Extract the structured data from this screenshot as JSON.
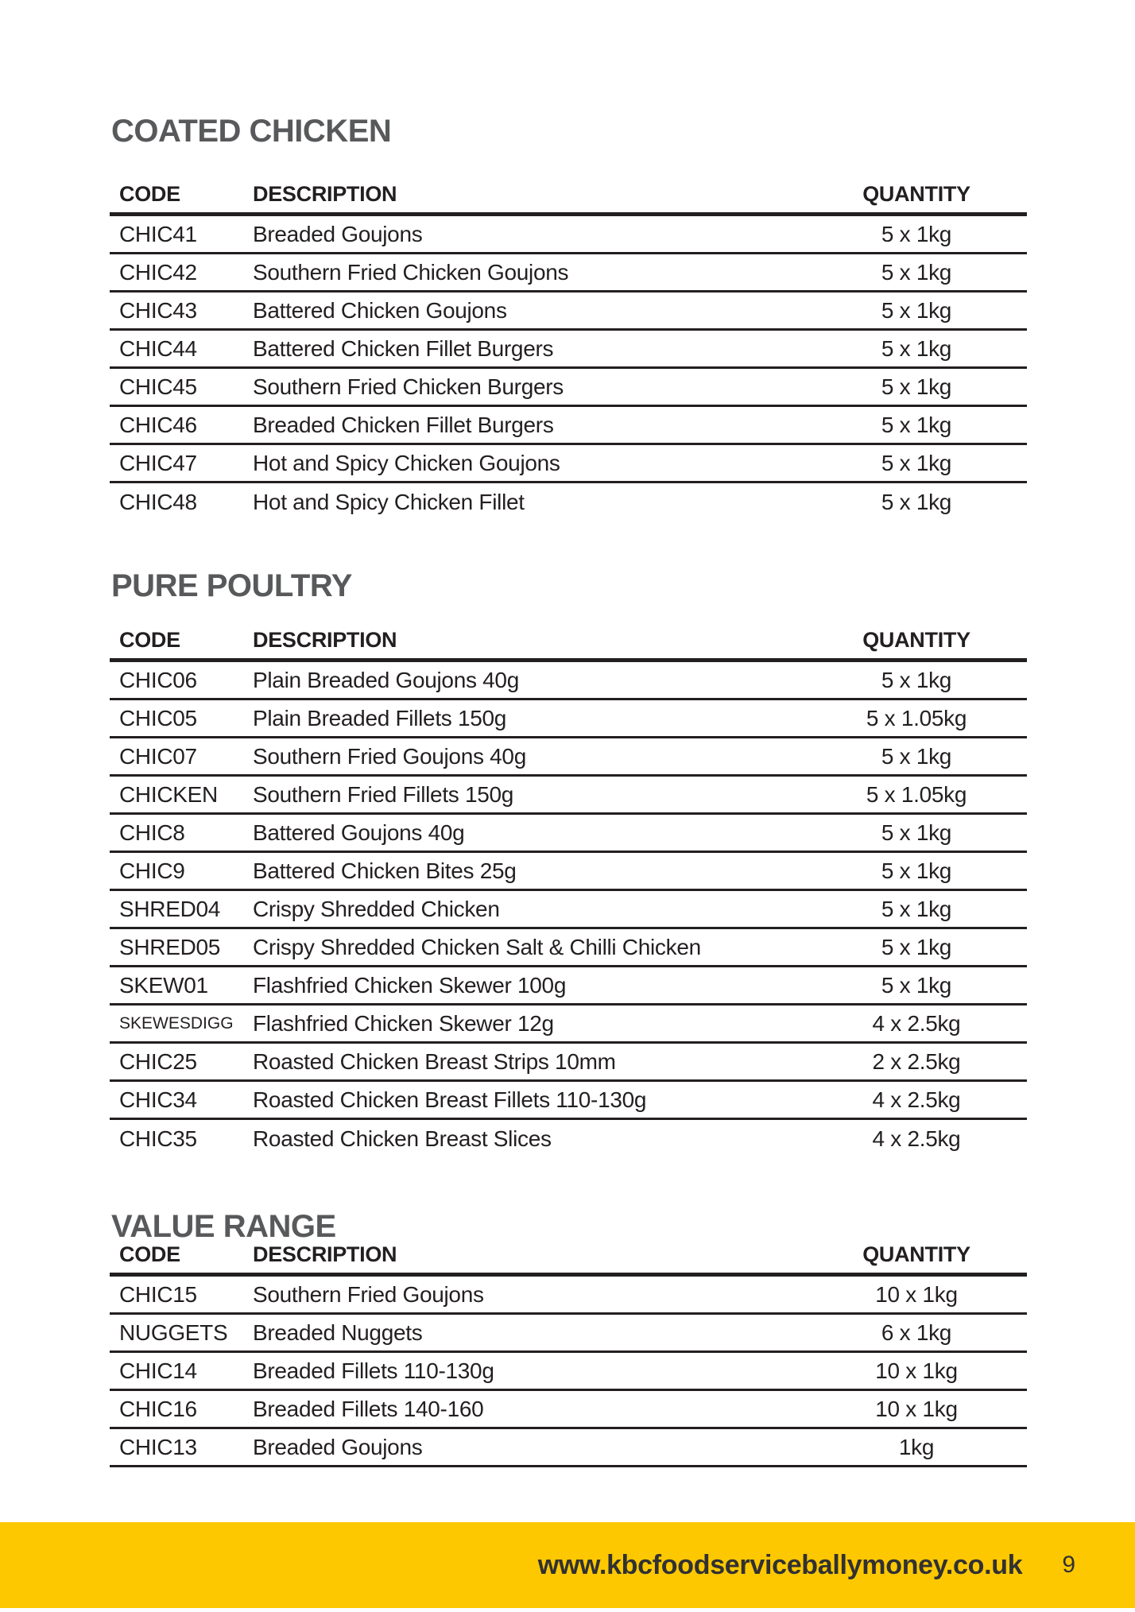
{
  "page": {
    "footer_url": "www.kbcfoodserviceballymoney.co.uk",
    "page_number": "9",
    "colors": {
      "accent_yellow": "#FDC800",
      "heading_gray": "#58595B",
      "text_black": "#231F20"
    }
  },
  "columns": {
    "code": "CODE",
    "description": "DESCRIPTION",
    "quantity": "QUANTITY"
  },
  "sections": [
    {
      "title": "COATED CHICKEN",
      "rows": [
        [
          "CHIC41",
          "Breaded Goujons",
          "5 x 1kg"
        ],
        [
          "CHIC42",
          "Southern Fried Chicken Goujons",
          "5 x 1kg"
        ],
        [
          "CHIC43",
          "Battered Chicken Goujons",
          "5 x 1kg"
        ],
        [
          "CHIC44",
          "Battered Chicken Fillet Burgers",
          "5 x 1kg"
        ],
        [
          "CHIC45",
          "Southern Fried Chicken Burgers",
          "5 x 1kg"
        ],
        [
          "CHIC46",
          "Breaded Chicken Fillet Burgers",
          "5 x 1kg"
        ],
        [
          "CHIC47",
          "Hot and Spicy Chicken Goujons",
          "5 x 1kg"
        ],
        [
          "CHIC48",
          "Hot and Spicy Chicken Fillet",
          "5 x 1kg"
        ]
      ]
    },
    {
      "title": "PURE POULTRY",
      "rows": [
        [
          "CHIC06",
          "Plain Breaded Goujons 40g",
          "5 x 1kg"
        ],
        [
          "CHIC05",
          "Plain Breaded Fillets 150g",
          "5 x 1.05kg"
        ],
        [
          "CHIC07",
          "Southern Fried Goujons 40g",
          "5 x 1kg"
        ],
        [
          "CHICKEN",
          "Southern Fried Fillets 150g",
          "5 x 1.05kg"
        ],
        [
          "CHIC8",
          "Battered Goujons 40g",
          "5 x 1kg"
        ],
        [
          "CHIC9",
          "Battered Chicken Bites 25g",
          "5 x 1kg"
        ],
        [
          "SHRED04",
          "Crispy Shredded Chicken",
          "5 x 1kg"
        ],
        [
          "SHRED05",
          "Crispy Shredded Chicken Salt & Chilli Chicken",
          "5 x 1kg"
        ],
        [
          "SKEW01",
          "Flashfried Chicken Skewer 100g",
          "5 x 1kg"
        ],
        [
          "SKEWESDIGG",
          "Flashfried Chicken Skewer 12g",
          "4 x 2.5kg"
        ],
        [
          "CHIC25",
          "Roasted Chicken Breast Strips 10mm",
          "2 x 2.5kg"
        ],
        [
          "CHIC34",
          "Roasted Chicken Breast Fillets 110-130g",
          "4 x 2.5kg"
        ],
        [
          "CHIC35",
          "Roasted Chicken Breast Slices",
          "4 x 2.5kg"
        ]
      ]
    },
    {
      "title": "VALUE RANGE",
      "rows": [
        [
          "CHIC15",
          "Southern Fried Goujons",
          "10 x 1kg"
        ],
        [
          "NUGGETS",
          "Breaded Nuggets",
          "6 x 1kg"
        ],
        [
          "CHIC14",
          "Breaded Fillets 110-130g",
          "10 x 1kg"
        ],
        [
          "CHIC16",
          "Breaded Fillets 140-160",
          "10 x 1kg"
        ],
        [
          "CHIC13",
          "Breaded Goujons",
          "1kg"
        ]
      ]
    }
  ]
}
